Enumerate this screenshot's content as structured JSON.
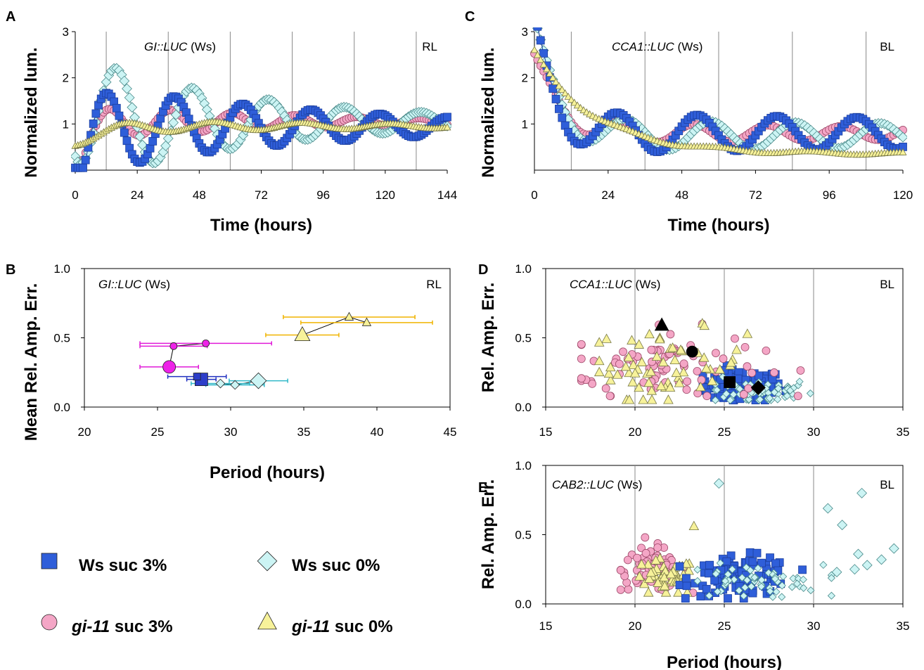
{
  "legend": [
    {
      "key": "ws3",
      "label_a": "Ws suc 3%",
      "label_b": ""
    },
    {
      "key": "ws0",
      "label_a": "Ws suc 0%",
      "label_b": ""
    },
    {
      "key": "gi3",
      "label_a": "gi-11",
      "label_b": " suc 3%"
    },
    {
      "key": "gi0",
      "label_a": "gi-11",
      "label_b": " suc 0%"
    }
  ],
  "styles": {
    "ws3": {
      "fill": "#2f5ed9",
      "stroke": "#1c3f9e",
      "shape": "square"
    },
    "ws0": {
      "fill": "#ccf4f4",
      "stroke": "#4a8a8a",
      "shape": "diamond"
    },
    "gi3": {
      "fill": "#f4a6c6",
      "stroke": "#9e4a6a",
      "shape": "circle"
    },
    "gi0": {
      "fill": "#f7f29a",
      "stroke": "#777744",
      "shape": "triangle"
    }
  },
  "chart_data": [
    {
      "panel": "A",
      "type": "line",
      "title_a": "GI::LUC",
      "title_b": " (Ws)",
      "corner": "RL",
      "xlabel": "Time (hours)",
      "ylabel": "Normalized lum.",
      "xlim": [
        0,
        144
      ],
      "ylim": [
        0,
        3
      ],
      "xticks": [
        0,
        24,
        48,
        72,
        96,
        120,
        144
      ],
      "yticks": [
        1,
        2,
        3
      ],
      "vgrid": [
        12,
        36,
        60,
        84,
        108,
        132
      ],
      "series": [
        {
          "key": "ws3",
          "baseline": 0.95,
          "amp": 1.0,
          "period": 26.5,
          "phase": 12,
          "decay": 90,
          "shift0": -0.7,
          "shiftT": 8
        },
        {
          "key": "ws0",
          "baseline": 1.05,
          "amp": 1.4,
          "period": 29.5,
          "phase": 16,
          "decay": 70,
          "shift0": 0.6,
          "shiftT": 6
        },
        {
          "key": "gi3",
          "baseline": 1.05,
          "amp": 0.4,
          "period": 24,
          "phase": 13,
          "decay": 80,
          "shift0": -0.9,
          "shiftT": 5
        },
        {
          "key": "gi0",
          "baseline": 0.95,
          "amp": 0.15,
          "period": 34,
          "phase": 20,
          "decay": 120,
          "shift0": -0.3,
          "shiftT": 12
        }
      ]
    },
    {
      "panel": "C",
      "type": "line",
      "title_a": "CCA1::LUC",
      "title_b": " (Ws)",
      "corner": "BL",
      "xlabel": "Time (hours)",
      "ylabel": "Normalized lum.",
      "xlim": [
        0,
        120
      ],
      "ylim": [
        0,
        3
      ],
      "xticks": [
        0,
        24,
        48,
        72,
        96,
        120
      ],
      "yticks": [
        1,
        2,
        3
      ],
      "vgrid": [
        12,
        36,
        60,
        84,
        108
      ],
      "series": [
        {
          "key": "ws3",
          "baseline": 0.8,
          "amp": 0.45,
          "period": 26,
          "phase": 27,
          "decay": 400,
          "shift0": 2.2,
          "shiftT": 6
        },
        {
          "key": "ws0",
          "baseline": 0.75,
          "amp": 0.35,
          "period": 27.5,
          "phase": 30,
          "decay": 400,
          "shift0": 2.3,
          "shiftT": 7
        },
        {
          "key": "gi3",
          "baseline": 0.8,
          "amp": 0.25,
          "period": 24,
          "phase": 28,
          "decay": 200,
          "shift0": 1.6,
          "shiftT": 8
        },
        {
          "key": "gi0",
          "baseline": 0.35,
          "amp": 0.05,
          "period": 30,
          "phase": 30,
          "decay": 200,
          "shift0": 2.2,
          "shiftT": 20
        }
      ]
    },
    {
      "panel": "B",
      "type": "scatter",
      "title_a": "GI::LUC",
      "title_b": " (Ws)",
      "corner": "RL",
      "xlabel": "Period (hours)",
      "ylabel": "Mean Rel. Amp. Err.",
      "xlim": [
        20,
        45
      ],
      "ylim": [
        0,
        1
      ],
      "xticks": [
        20,
        25,
        30,
        35,
        40,
        45
      ],
      "yticks": [
        0.0,
        0.5,
        1.0
      ],
      "points": [
        {
          "key": "gi3",
          "x": 25.8,
          "y": 0.29,
          "xerr": 2.0,
          "big": true,
          "color": "#e01ad8"
        },
        {
          "key": "gi3",
          "x": 26.1,
          "y": 0.44,
          "xerr": 2.3,
          "big": false,
          "color": "#e01ad8"
        },
        {
          "key": "gi3",
          "x": 28.3,
          "y": 0.46,
          "xerr": 4.5,
          "big": false,
          "color": "#e01ad8"
        },
        {
          "key": "ws3",
          "x": 28.0,
          "y": 0.2,
          "xerr": 1.0,
          "big": true,
          "color": "#2030c0"
        },
        {
          "key": "ws3",
          "x": 27.7,
          "y": 0.22,
          "xerr": 2.0,
          "big": false,
          "color": "#2030c0"
        },
        {
          "key": "ws0",
          "x": 31.9,
          "y": 0.19,
          "xerr": 2.0,
          "big": true,
          "color": "#30b8c8"
        },
        {
          "key": "ws0",
          "x": 30.3,
          "y": 0.16,
          "xerr": 2.0,
          "big": false,
          "color": "#30b8c8"
        },
        {
          "key": "ws0",
          "x": 29.3,
          "y": 0.17,
          "xerr": 2.0,
          "big": false,
          "color": "#30b8c8"
        },
        {
          "key": "gi0",
          "x": 34.9,
          "y": 0.52,
          "xerr": 2.5,
          "big": true,
          "color": "#f0b400"
        },
        {
          "key": "gi0",
          "x": 38.1,
          "y": 0.65,
          "xerr": 4.5,
          "big": false,
          "color": "#f0b400"
        },
        {
          "key": "gi0",
          "x": 39.3,
          "y": 0.61,
          "xerr": 4.5,
          "big": false,
          "color": "#f0b400"
        }
      ]
    },
    {
      "panel": "D",
      "type": "scatter",
      "title_a": "CCA1::LUC",
      "title_b": " (Ws)",
      "corner": "BL",
      "xlabel": "",
      "ylabel": "Rel. Amp. Err.",
      "xlim": [
        15,
        35
      ],
      "ylim": [
        0,
        1
      ],
      "xticks": [
        15,
        20,
        25,
        30,
        35
      ],
      "yticks": [
        0.0,
        0.5,
        1.0
      ],
      "vgrid": [
        20,
        25,
        30
      ],
      "clouds": [
        {
          "key": "ws3",
          "n": 95,
          "cx": 25.9,
          "sx": 1.2,
          "cy": 0.15,
          "sy": 0.06,
          "xmin": 23.8,
          "xmax": 29.0,
          "ymin": 0.05,
          "ymax": 0.35
        },
        {
          "key": "ws0",
          "n": 60,
          "cx": 26.8,
          "sx": 1.6,
          "cy": 0.11,
          "sy": 0.05,
          "xmin": 24.5,
          "xmax": 31.5,
          "ymin": 0.05,
          "ymax": 0.25
        },
        {
          "key": "gi3",
          "n": 80,
          "cx": 21.5,
          "sx": 2.8,
          "cy": 0.3,
          "sy": 0.13,
          "xmin": 17.0,
          "xmax": 34.8,
          "ymin": 0.08,
          "ymax": 0.76
        },
        {
          "key": "gi0",
          "n": 60,
          "cx": 21.8,
          "sx": 2.2,
          "cy": 0.3,
          "sy": 0.13,
          "xmin": 18.0,
          "xmax": 30.0,
          "ymin": 0.05,
          "ymax": 0.7
        }
      ],
      "means": [
        {
          "shape": "triangle",
          "x": 21.5,
          "y": 0.59
        },
        {
          "shape": "circle",
          "x": 23.2,
          "y": 0.4
        },
        {
          "shape": "square",
          "x": 25.3,
          "y": 0.18
        },
        {
          "shape": "diamond",
          "x": 26.9,
          "y": 0.14
        }
      ]
    },
    {
      "panel": "E",
      "type": "scatter",
      "title_a": "CAB2::LUC",
      "title_b": " (Ws)",
      "corner": "BL",
      "xlabel": "Period (hours)",
      "ylabel": "Rel. Amp. Err.",
      "xlim": [
        15,
        35
      ],
      "ylim": [
        0,
        1
      ],
      "xticks": [
        15,
        20,
        25,
        30,
        35
      ],
      "yticks": [
        0.0,
        0.5,
        1.0
      ],
      "vgrid": [
        20,
        25,
        30
      ],
      "clouds": [
        {
          "key": "gi3",
          "n": 75,
          "cx": 21.0,
          "sx": 1.0,
          "cy": 0.25,
          "sy": 0.08,
          "xmin": 19.2,
          "xmax": 23.6,
          "ymin": 0.08,
          "ymax": 0.48
        },
        {
          "key": "gi0",
          "n": 45,
          "cx": 21.6,
          "sx": 0.9,
          "cy": 0.18,
          "sy": 0.07,
          "xmin": 19.8,
          "xmax": 23.4,
          "ymin": 0.08,
          "ymax": 0.4
        },
        {
          "key": "ws3",
          "n": 110,
          "cx": 26.0,
          "sx": 1.4,
          "cy": 0.2,
          "sy": 0.07,
          "xmin": 22.5,
          "xmax": 30.5,
          "ymin": 0.04,
          "ymax": 0.4
        },
        {
          "key": "ws0",
          "n": 60,
          "cx": 26.5,
          "sx": 2.0,
          "cy": 0.16,
          "sy": 0.06,
          "xmin": 23.5,
          "xmax": 31.0,
          "ymin": 0.05,
          "ymax": 0.3
        }
      ],
      "extras": [
        {
          "key": "ws0",
          "x": 24.7,
          "y": 0.87
        },
        {
          "key": "ws0",
          "x": 30.8,
          "y": 0.69
        },
        {
          "key": "ws0",
          "x": 31.6,
          "y": 0.57
        },
        {
          "key": "ws0",
          "x": 32.7,
          "y": 0.8
        },
        {
          "key": "ws0",
          "x": 34.5,
          "y": 0.4
        },
        {
          "key": "ws0",
          "x": 33.8,
          "y": 0.32
        },
        {
          "key": "ws0",
          "x": 33.0,
          "y": 0.28
        },
        {
          "key": "ws0",
          "x": 32.3,
          "y": 0.25
        },
        {
          "key": "ws0",
          "x": 31.3,
          "y": 0.23
        },
        {
          "key": "ws0",
          "x": 32.5,
          "y": 0.36
        },
        {
          "key": "gi0",
          "x": 23.3,
          "y": 0.56
        }
      ]
    }
  ]
}
